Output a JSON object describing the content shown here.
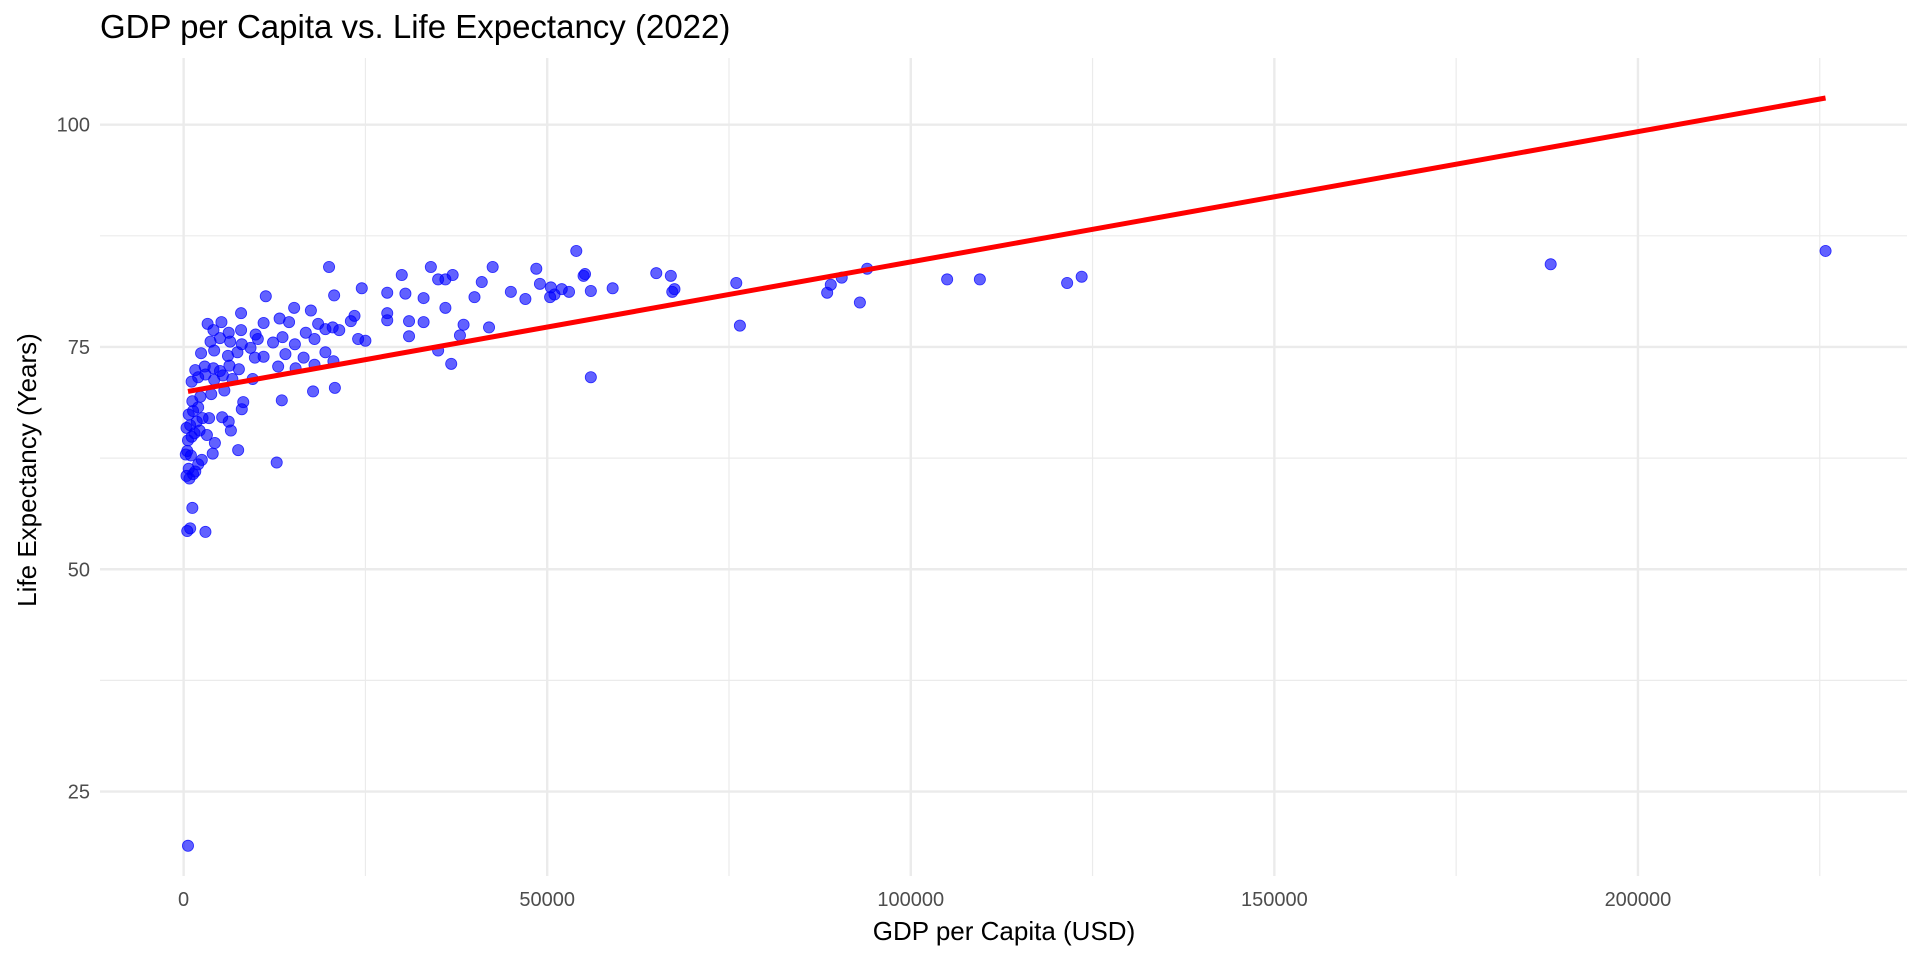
{
  "chart_data": {
    "type": "scatter",
    "title": "GDP per Capita vs. Life Expectancy (2022)",
    "xlabel": "GDP per Capita (USD)",
    "ylabel": "Life Expectancy (Years)",
    "xlim": [
      -11500,
      237000
    ],
    "ylim": [
      15.5,
      107.5
    ],
    "x_ticks": [
      0,
      50000,
      100000,
      150000,
      200000
    ],
    "x_tick_labels": [
      "0",
      "50000",
      "100000",
      "150000",
      "200000"
    ],
    "x_minor_ticks": [
      25000,
      75000,
      125000,
      175000,
      225000
    ],
    "y_ticks": [
      25,
      50,
      75,
      100
    ],
    "y_tick_labels": [
      "25",
      "50",
      "75",
      "100"
    ],
    "y_minor_ticks": [
      37.5,
      62.5,
      87.5
    ],
    "grid": true,
    "point_color": "#0000ff",
    "trend_color": "#ff0000",
    "grid_color": "#ebebeb",
    "series": [
      {
        "name": "countries",
        "points": [
          [
            600,
            18.9
          ],
          [
            500,
            54.3
          ],
          [
            900,
            54.6
          ],
          [
            3000,
            54.2
          ],
          [
            1200,
            56.9
          ],
          [
            400,
            60.5
          ],
          [
            800,
            60.2
          ],
          [
            1300,
            60.7
          ],
          [
            1600,
            61.0
          ],
          [
            700,
            61.3
          ],
          [
            300,
            62.9
          ],
          [
            500,
            63.3
          ],
          [
            1000,
            62.8
          ],
          [
            2000,
            61.8
          ],
          [
            2500,
            62.3
          ],
          [
            4000,
            63.0
          ],
          [
            7500,
            63.4
          ],
          [
            12800,
            62.0
          ],
          [
            600,
            64.5
          ],
          [
            1100,
            64.9
          ],
          [
            1500,
            65.3
          ],
          [
            2200,
            65.6
          ],
          [
            3200,
            65.1
          ],
          [
            400,
            65.9
          ],
          [
            900,
            66.2
          ],
          [
            1800,
            66.6
          ],
          [
            2600,
            67.0
          ],
          [
            4300,
            64.2
          ],
          [
            6500,
            65.6
          ],
          [
            700,
            67.4
          ],
          [
            1300,
            67.8
          ],
          [
            2000,
            68.2
          ],
          [
            3500,
            67.0
          ],
          [
            5300,
            67.1
          ],
          [
            6200,
            66.6
          ],
          [
            8000,
            68.0
          ],
          [
            1200,
            68.9
          ],
          [
            2300,
            69.4
          ],
          [
            3800,
            69.7
          ],
          [
            5600,
            70.1
          ],
          [
            8200,
            68.8
          ],
          [
            13500,
            69.0
          ],
          [
            17800,
            70.0
          ],
          [
            20800,
            70.4
          ],
          [
            1100,
            71.1
          ],
          [
            2000,
            71.6
          ],
          [
            3000,
            71.9
          ],
          [
            4200,
            71.3
          ],
          [
            5400,
            71.8
          ],
          [
            6700,
            71.4
          ],
          [
            9500,
            71.4
          ],
          [
            1600,
            72.4
          ],
          [
            2900,
            72.8
          ],
          [
            4100,
            72.6
          ],
          [
            5000,
            72.3
          ],
          [
            6300,
            72.9
          ],
          [
            7600,
            72.5
          ],
          [
            13000,
            72.8
          ],
          [
            15400,
            72.6
          ],
          [
            18000,
            73.0
          ],
          [
            2400,
            74.3
          ],
          [
            4200,
            74.6
          ],
          [
            6100,
            74.0
          ],
          [
            7400,
            74.4
          ],
          [
            9200,
            74.9
          ],
          [
            11000,
            73.9
          ],
          [
            14000,
            74.2
          ],
          [
            16500,
            73.8
          ],
          [
            19500,
            74.4
          ],
          [
            20600,
            73.4
          ],
          [
            35000,
            74.6
          ],
          [
            36800,
            73.1
          ],
          [
            3700,
            75.6
          ],
          [
            5000,
            76.0
          ],
          [
            6400,
            75.6
          ],
          [
            8000,
            75.3
          ],
          [
            10200,
            75.9
          ],
          [
            12300,
            75.5
          ],
          [
            15300,
            75.3
          ],
          [
            18000,
            75.9
          ],
          [
            24000,
            75.9
          ],
          [
            4100,
            76.9
          ],
          [
            6200,
            76.6
          ],
          [
            7900,
            76.9
          ],
          [
            9900,
            76.4
          ],
          [
            13600,
            76.1
          ],
          [
            19500,
            77.0
          ],
          [
            21400,
            76.9
          ],
          [
            31000,
            76.2
          ],
          [
            38000,
            76.3
          ],
          [
            3300,
            77.6
          ],
          [
            5200,
            77.8
          ],
          [
            11000,
            77.7
          ],
          [
            14500,
            77.8
          ],
          [
            18500,
            77.6
          ],
          [
            23000,
            77.9
          ],
          [
            28000,
            78.0
          ],
          [
            31000,
            77.9
          ],
          [
            33000,
            77.8
          ],
          [
            38500,
            77.5
          ],
          [
            42000,
            77.2
          ],
          [
            76500,
            77.4
          ],
          [
            7900,
            78.8
          ],
          [
            13200,
            78.2
          ],
          [
            17500,
            79.1
          ],
          [
            23500,
            78.5
          ],
          [
            28000,
            78.8
          ],
          [
            36000,
            79.4
          ],
          [
            15200,
            79.4
          ],
          [
            9800,
            73.8
          ],
          [
            11300,
            80.7
          ],
          [
            20700,
            80.8
          ],
          [
            28000,
            81.1
          ],
          [
            30500,
            81.0
          ],
          [
            33000,
            80.5
          ],
          [
            40000,
            80.6
          ],
          [
            45000,
            81.2
          ],
          [
            47000,
            80.4
          ],
          [
            50400,
            80.6
          ],
          [
            51000,
            80.9
          ],
          [
            53000,
            81.2
          ],
          [
            56000,
            81.3
          ],
          [
            59000,
            81.6
          ],
          [
            67200,
            81.2
          ],
          [
            88500,
            81.1
          ],
          [
            24500,
            81.6
          ],
          [
            41000,
            82.3
          ],
          [
            49000,
            82.1
          ],
          [
            50500,
            81.7
          ],
          [
            52000,
            81.5
          ],
          [
            65000,
            83.3
          ],
          [
            67000,
            83.0
          ],
          [
            76000,
            82.2
          ],
          [
            89000,
            82.0
          ],
          [
            90500,
            82.8
          ],
          [
            105000,
            82.6
          ],
          [
            109500,
            82.6
          ],
          [
            121500,
            82.2
          ],
          [
            123500,
            82.9
          ],
          [
            30000,
            83.1
          ],
          [
            34000,
            84.0
          ],
          [
            35000,
            82.6
          ],
          [
            36000,
            82.6
          ],
          [
            37000,
            83.1
          ],
          [
            42500,
            84.0
          ],
          [
            48500,
            83.8
          ],
          [
            55000,
            83.0
          ],
          [
            55200,
            83.2
          ],
          [
            20000,
            84.0
          ],
          [
            94000,
            83.8
          ],
          [
            188000,
            84.3
          ],
          [
            54000,
            85.8
          ],
          [
            225800,
            85.8
          ],
          [
            56000,
            71.6
          ],
          [
            67500,
            81.5
          ],
          [
            93000,
            80.0
          ],
          [
            20500,
            77.2
          ],
          [
            25000,
            75.7
          ],
          [
            16800,
            76.6
          ]
        ]
      }
    ],
    "trend_line": {
      "x": [
        600,
        225800
      ],
      "y": [
        70.0,
        103.0
      ]
    }
  }
}
